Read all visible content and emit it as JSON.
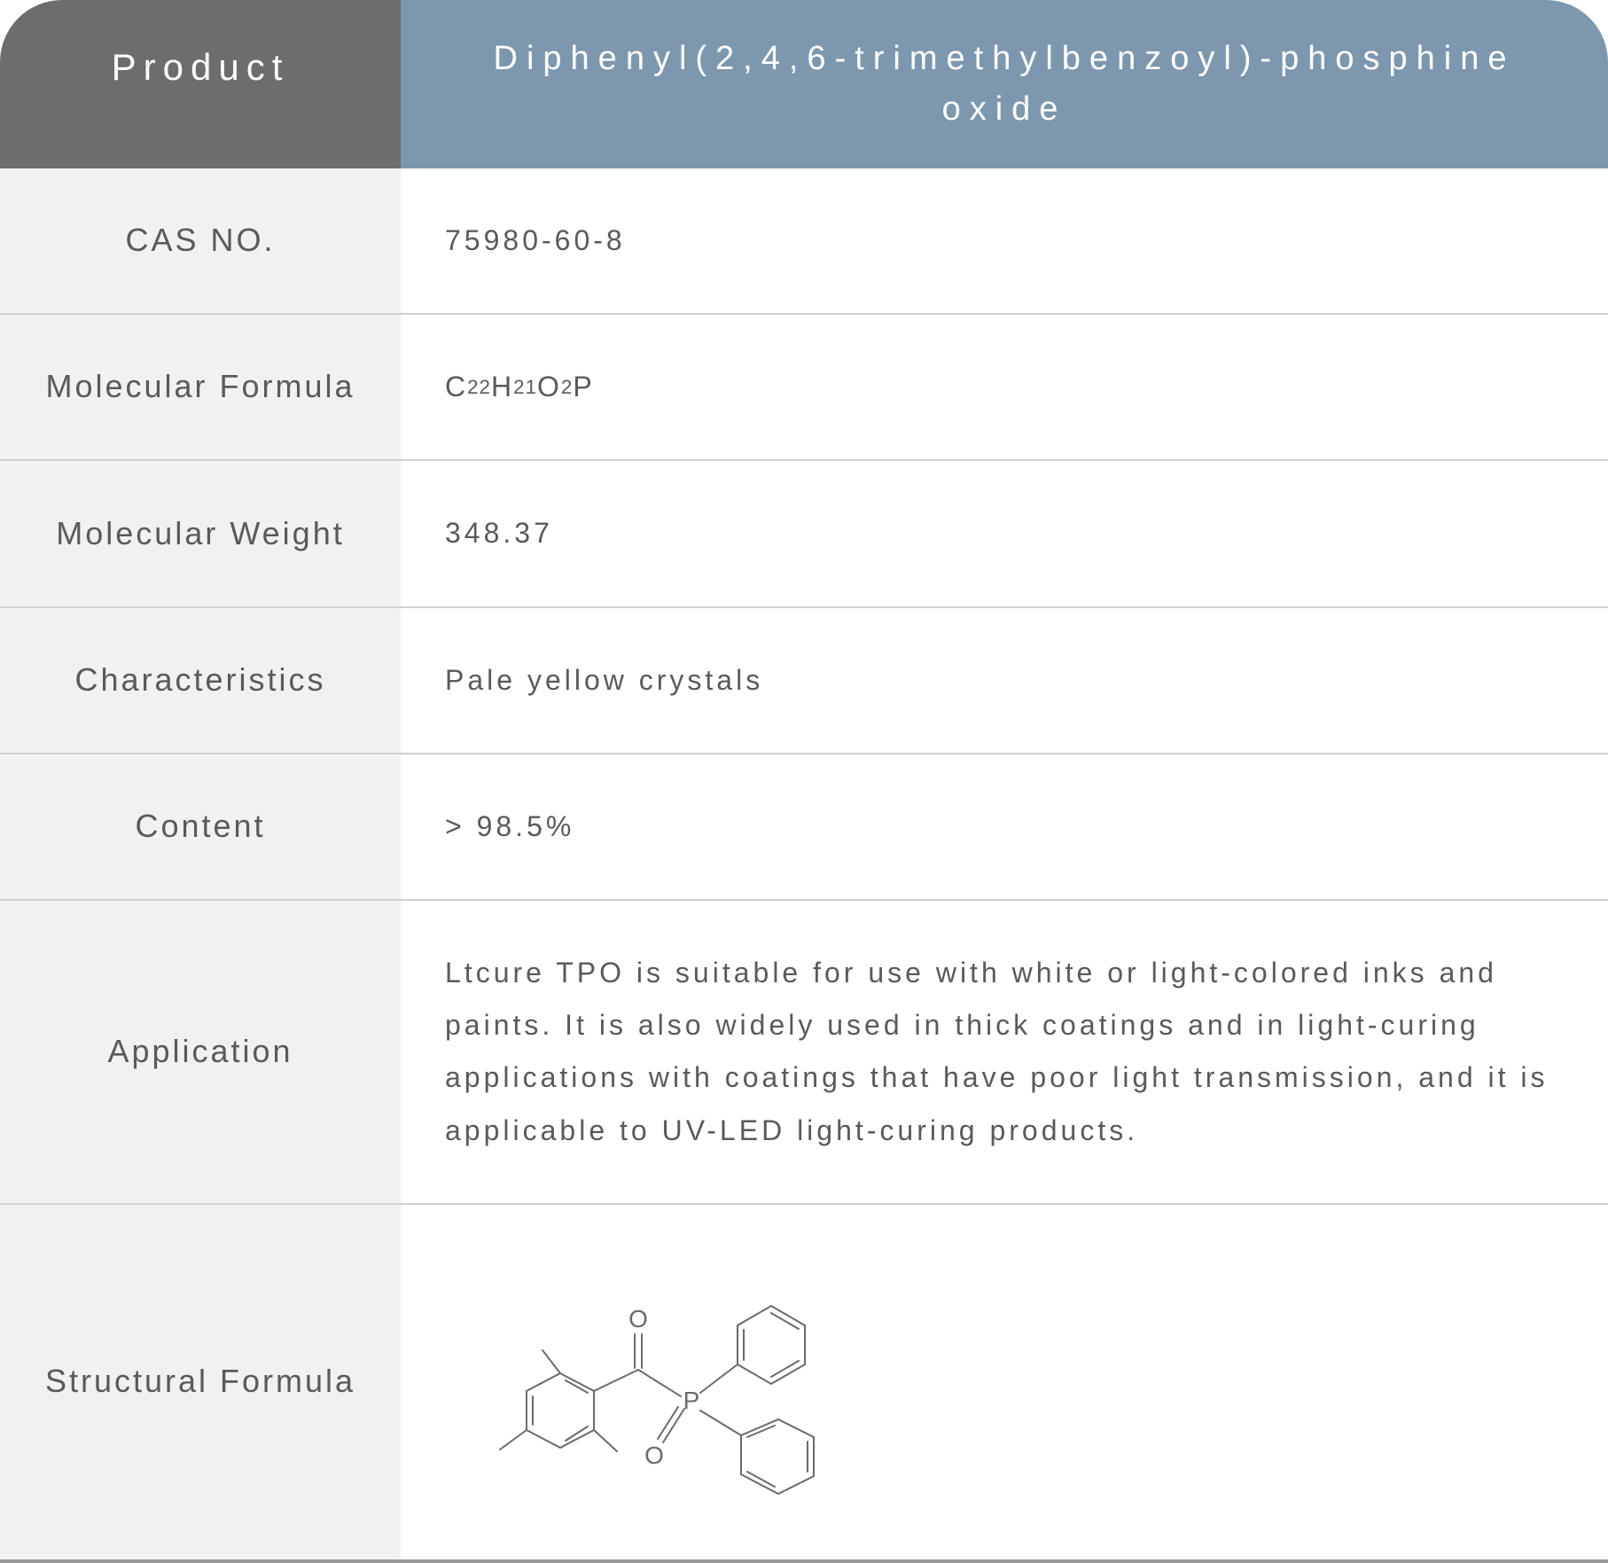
{
  "header": {
    "label": "Product",
    "value": "Diphenyl(2,4,6-trimethylbenzoyl)-phosphine oxide"
  },
  "rows": [
    {
      "label": "CAS NO.",
      "value": "75980-60-8"
    },
    {
      "label": "Molecular Formula",
      "value_html": "C<sub>22</sub>H<sub>21</sub>O<sub>2</sub>P",
      "is_formula": true
    },
    {
      "label": "Molecular Weight",
      "value": "348.37"
    },
    {
      "label": "Characteristics",
      "value": "Pale yellow crystals"
    },
    {
      "label": "Content",
      "value": "> 98.5%"
    },
    {
      "label": "Application",
      "value": "Ltcure TPO is suitable for use with white or light-colored inks and paints. It is also widely used in thick coatings and in light-curing applications with coatings that have poor light transmission, and it is applicable to UV-LED light-curing products."
    },
    {
      "label": "Structural Formula",
      "is_structure": true
    }
  ],
  "colors": {
    "header_label_bg": "#6d6d6d",
    "header_value_bg": "#7d98ae",
    "row_label_bg": "#f1f1f1",
    "text_color": "#5a5a5a",
    "border_color": "#d0d0d0",
    "bottom_border": "#9a9a9a",
    "structure_stroke": "#6a6a6a"
  },
  "structure": {
    "stroke": "#6a6a6a",
    "stroke_width": 2,
    "label_O1": "O",
    "label_O2": "O",
    "label_P": "P"
  }
}
